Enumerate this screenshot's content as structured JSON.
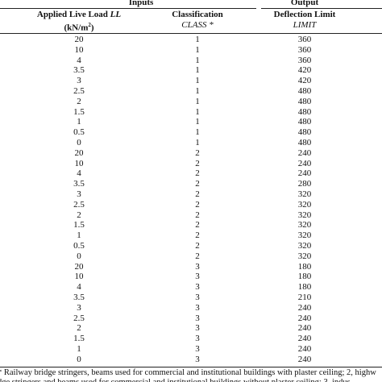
{
  "table": {
    "group_labels": [
      "Inputs",
      "Output"
    ],
    "columns": [
      {
        "title": "Applied Live Load",
        "var": "LL",
        "unit_open": "(kN/m",
        "unit_exp": "2",
        "unit_close": ")"
      },
      {
        "title": "Classification",
        "var": "CLASS *"
      },
      {
        "title": "Deflection Limit",
        "var": "LIMIT"
      }
    ],
    "rows": [
      [
        20,
        1,
        360
      ],
      [
        10,
        1,
        360
      ],
      [
        4,
        1,
        360
      ],
      [
        3.5,
        1,
        420
      ],
      [
        3,
        1,
        420
      ],
      [
        2.5,
        1,
        480
      ],
      [
        2,
        1,
        480
      ],
      [
        1.5,
        1,
        480
      ],
      [
        1,
        1,
        480
      ],
      [
        0.5,
        1,
        480
      ],
      [
        0,
        1,
        480
      ],
      [
        20,
        2,
        240
      ],
      [
        10,
        2,
        240
      ],
      [
        4,
        2,
        240
      ],
      [
        3.5,
        2,
        280
      ],
      [
        3,
        2,
        320
      ],
      [
        2.5,
        2,
        320
      ],
      [
        2,
        2,
        320
      ],
      [
        1.5,
        2,
        320
      ],
      [
        1,
        2,
        320
      ],
      [
        0.5,
        2,
        320
      ],
      [
        0,
        2,
        320
      ],
      [
        20,
        3,
        180
      ],
      [
        10,
        3,
        180
      ],
      [
        4,
        3,
        180
      ],
      [
        3.5,
        3,
        210
      ],
      [
        3,
        3,
        240
      ],
      [
        2.5,
        3,
        240
      ],
      [
        2,
        3,
        240
      ],
      [
        1.5,
        3,
        240
      ],
      [
        1,
        3,
        240
      ],
      [
        0,
        3,
        240
      ]
    ],
    "footnote": [
      "* Railway bridge stringers, beams used for commercial and institutional buildings with plaster ceiling; 2, highw",
      "dge stringers and beams used for commercial and institutional buildings without plaster ceiling; 3, indus",
      "f beams."
    ]
  }
}
